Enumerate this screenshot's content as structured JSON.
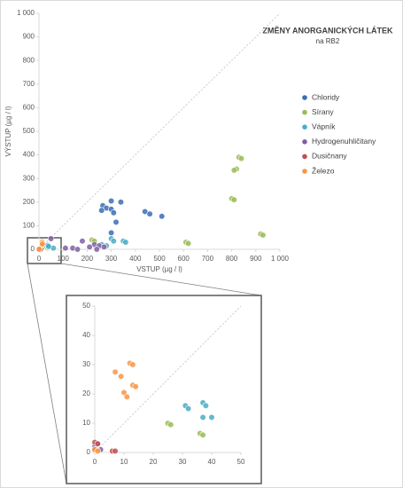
{
  "chart_data": [
    {
      "type": "scatter",
      "title": "ZMĚNY ANORGANICKÝCH LÁTEK",
      "subtitle": "na RB2",
      "x_label": "VSTUP (µg / l)",
      "y_label": "VÝSTUP (µg / l)",
      "xlim": [
        0,
        1000
      ],
      "ylim": [
        0,
        1000
      ],
      "xticks": [
        0,
        100,
        200,
        300,
        400,
        500,
        600,
        700,
        800,
        900,
        {
          "value": 1000,
          "label": "1 000"
        }
      ],
      "yticks": [
        0,
        100,
        200,
        300,
        400,
        500,
        600,
        700,
        800,
        900,
        {
          "value": 1000,
          "label": "1 000"
        }
      ],
      "legend": "right",
      "series": [
        {
          "name": "Chloridy",
          "color": "#3a6db5",
          "x": [
            300,
            340,
            265,
            280,
            300,
            260,
            310,
            320,
            440,
            460,
            510,
            300
          ],
          "values": [
            205,
            200,
            185,
            175,
            170,
            165,
            155,
            115,
            160,
            150,
            140,
            70
          ]
        },
        {
          "name": "Sírany",
          "color": "#9bbb59",
          "x": [
            830,
            840,
            820,
            810,
            800,
            810,
            610,
            620,
            920,
            930,
            220,
            230,
            25,
            36
          ],
          "values": [
            390,
            385,
            340,
            335,
            215,
            210,
            30,
            25,
            65,
            60,
            40,
            35,
            10,
            6
          ]
        },
        {
          "name": "Vápník",
          "color": "#4bacc6",
          "x": [
            300,
            310,
            350,
            360,
            260,
            280,
            40,
            60,
            31,
            37,
            40
          ],
          "values": [
            45,
            35,
            35,
            30,
            20,
            15,
            10,
            5,
            16,
            17,
            12
          ]
        },
        {
          "name": "Hydrogenuhličitany",
          "color": "#7f60a2",
          "x": [
            50,
            180,
            230,
            250,
            210,
            140,
            160,
            240,
            270,
            110
          ],
          "values": [
            45,
            35,
            20,
            15,
            10,
            5,
            0,
            0,
            10,
            5
          ]
        },
        {
          "name": "Dusičnany",
          "color": "#c0504d",
          "x": [
            6,
            7,
            0,
            1,
            0
          ],
          "values": [
            0.5,
            0.5,
            3.5,
            3,
            1
          ]
        },
        {
          "name": "Železo",
          "color": "#f79646",
          "x": [
            7,
            9,
            10,
            11,
            12,
            13,
            13,
            14,
            0,
            1
          ],
          "values": [
            27.5,
            26,
            20.5,
            19,
            30.5,
            30,
            23,
            22.5,
            1,
            0.5
          ]
        }
      ]
    },
    {
      "type": "scatter",
      "xlim": [
        0,
        50
      ],
      "ylim": [
        0,
        50
      ],
      "xticks": [
        0,
        10,
        20,
        30,
        40,
        50
      ],
      "yticks": [
        0,
        10,
        20,
        30,
        40,
        50
      ],
      "series": [
        {
          "color": "#9bbb59",
          "x": [
            25,
            26,
            36,
            37
          ],
          "values": [
            10,
            9.5,
            6.5,
            6
          ]
        },
        {
          "color": "#4bacc6",
          "x": [
            31,
            32,
            37,
            38,
            37,
            40
          ],
          "values": [
            16,
            15,
            17,
            16,
            12,
            12
          ]
        },
        {
          "color": "#7f60a2",
          "x": [
            0,
            2,
            1
          ],
          "values": [
            2,
            1,
            3
          ]
        },
        {
          "color": "#c0504d",
          "x": [
            6,
            7,
            0,
            1,
            0
          ],
          "values": [
            0.5,
            0.5,
            3.5,
            3,
            1
          ]
        },
        {
          "color": "#f79646",
          "x": [
            7,
            9,
            10,
            11,
            12,
            13,
            13,
            14,
            0,
            1
          ],
          "values": [
            27.5,
            26,
            20.5,
            19,
            30.5,
            30,
            23,
            22.5,
            1,
            0.5
          ]
        }
      ]
    }
  ]
}
